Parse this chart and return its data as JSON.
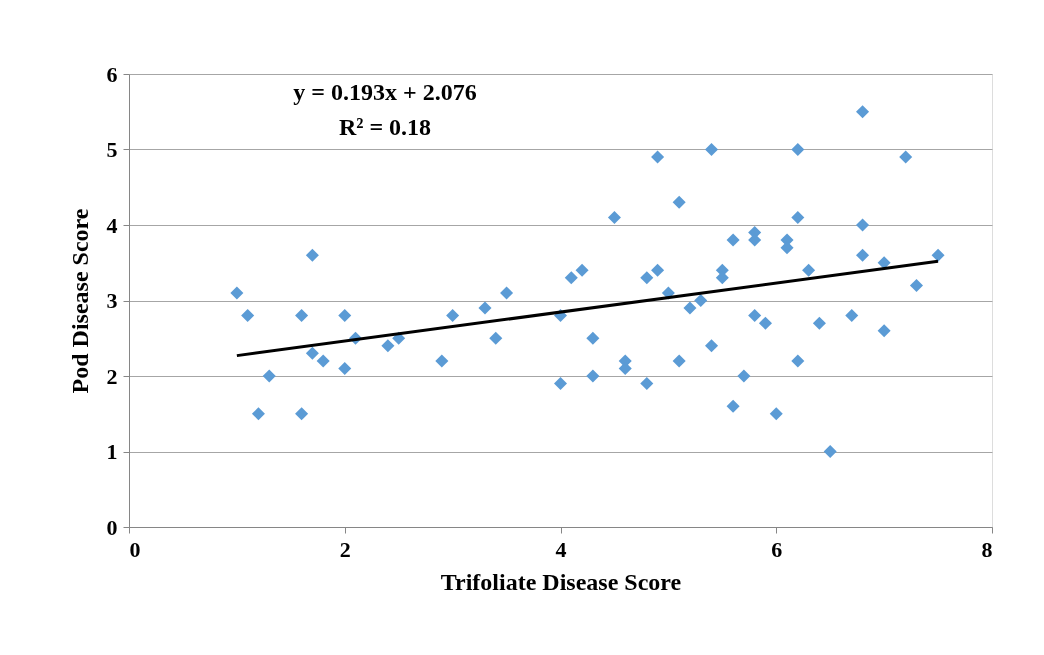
{
  "chart_data": {
    "type": "scatter",
    "xlabel": "Trifoliate Disease Score",
    "ylabel": "Pod Disease Score",
    "xlim": [
      0,
      8
    ],
    "xticks": [
      0,
      2,
      4,
      6,
      8
    ],
    "ylim": [
      0,
      6
    ],
    "yticks": [
      0,
      1,
      2,
      3,
      4,
      5,
      6
    ],
    "grid": "y",
    "marker": "diamond",
    "annotations": [
      "y = 0.193x + 2.076",
      "R² = 0.18"
    ],
    "series": [
      {
        "color": "#5b9bd5",
        "x": [
          1.0,
          1.1,
          1.2,
          1.3,
          1.6,
          1.6,
          1.7,
          1.7,
          1.8,
          2.0,
          2.0,
          2.1,
          2.4,
          2.5,
          2.9,
          3.0,
          3.3,
          3.4,
          3.5,
          4.0,
          4.0,
          4.1,
          4.2,
          4.3,
          4.3,
          4.5,
          4.6,
          4.6,
          4.8,
          4.8,
          4.9,
          4.9,
          5.0,
          5.1,
          5.1,
          5.2,
          5.3,
          5.4,
          5.4,
          5.5,
          5.5,
          5.6,
          5.6,
          5.7,
          5.8,
          5.8,
          5.8,
          5.9,
          6.0,
          6.1,
          6.1,
          6.2,
          6.2,
          6.2,
          6.3,
          6.4,
          6.5,
          6.7,
          6.8,
          6.8,
          6.8,
          7.0,
          7.0,
          7.2,
          7.3,
          7.5
        ],
        "values": [
          3.1,
          2.8,
          1.5,
          2.0,
          2.8,
          1.5,
          3.6,
          2.3,
          2.2,
          2.8,
          2.1,
          2.5,
          2.4,
          2.5,
          2.2,
          2.8,
          2.9,
          2.5,
          3.1,
          2.8,
          1.9,
          3.3,
          3.4,
          2.5,
          2.0,
          4.1,
          2.2,
          2.1,
          3.3,
          1.9,
          4.9,
          3.4,
          3.1,
          4.3,
          2.2,
          2.9,
          3.0,
          5.0,
          2.4,
          3.4,
          3.3,
          3.8,
          1.6,
          2.0,
          3.9,
          3.8,
          2.8,
          2.7,
          1.5,
          3.8,
          3.7,
          5.0,
          4.1,
          2.2,
          3.4,
          2.7,
          1.0,
          2.8,
          5.5,
          4.0,
          3.6,
          3.5,
          2.6,
          4.9,
          3.2,
          3.6
        ]
      },
      {
        "type": "line",
        "marker": "none",
        "line_style": "solid",
        "color": "#000000",
        "x": [
          1.0,
          7.5
        ],
        "values": [
          2.27,
          3.52
        ]
      }
    ]
  }
}
